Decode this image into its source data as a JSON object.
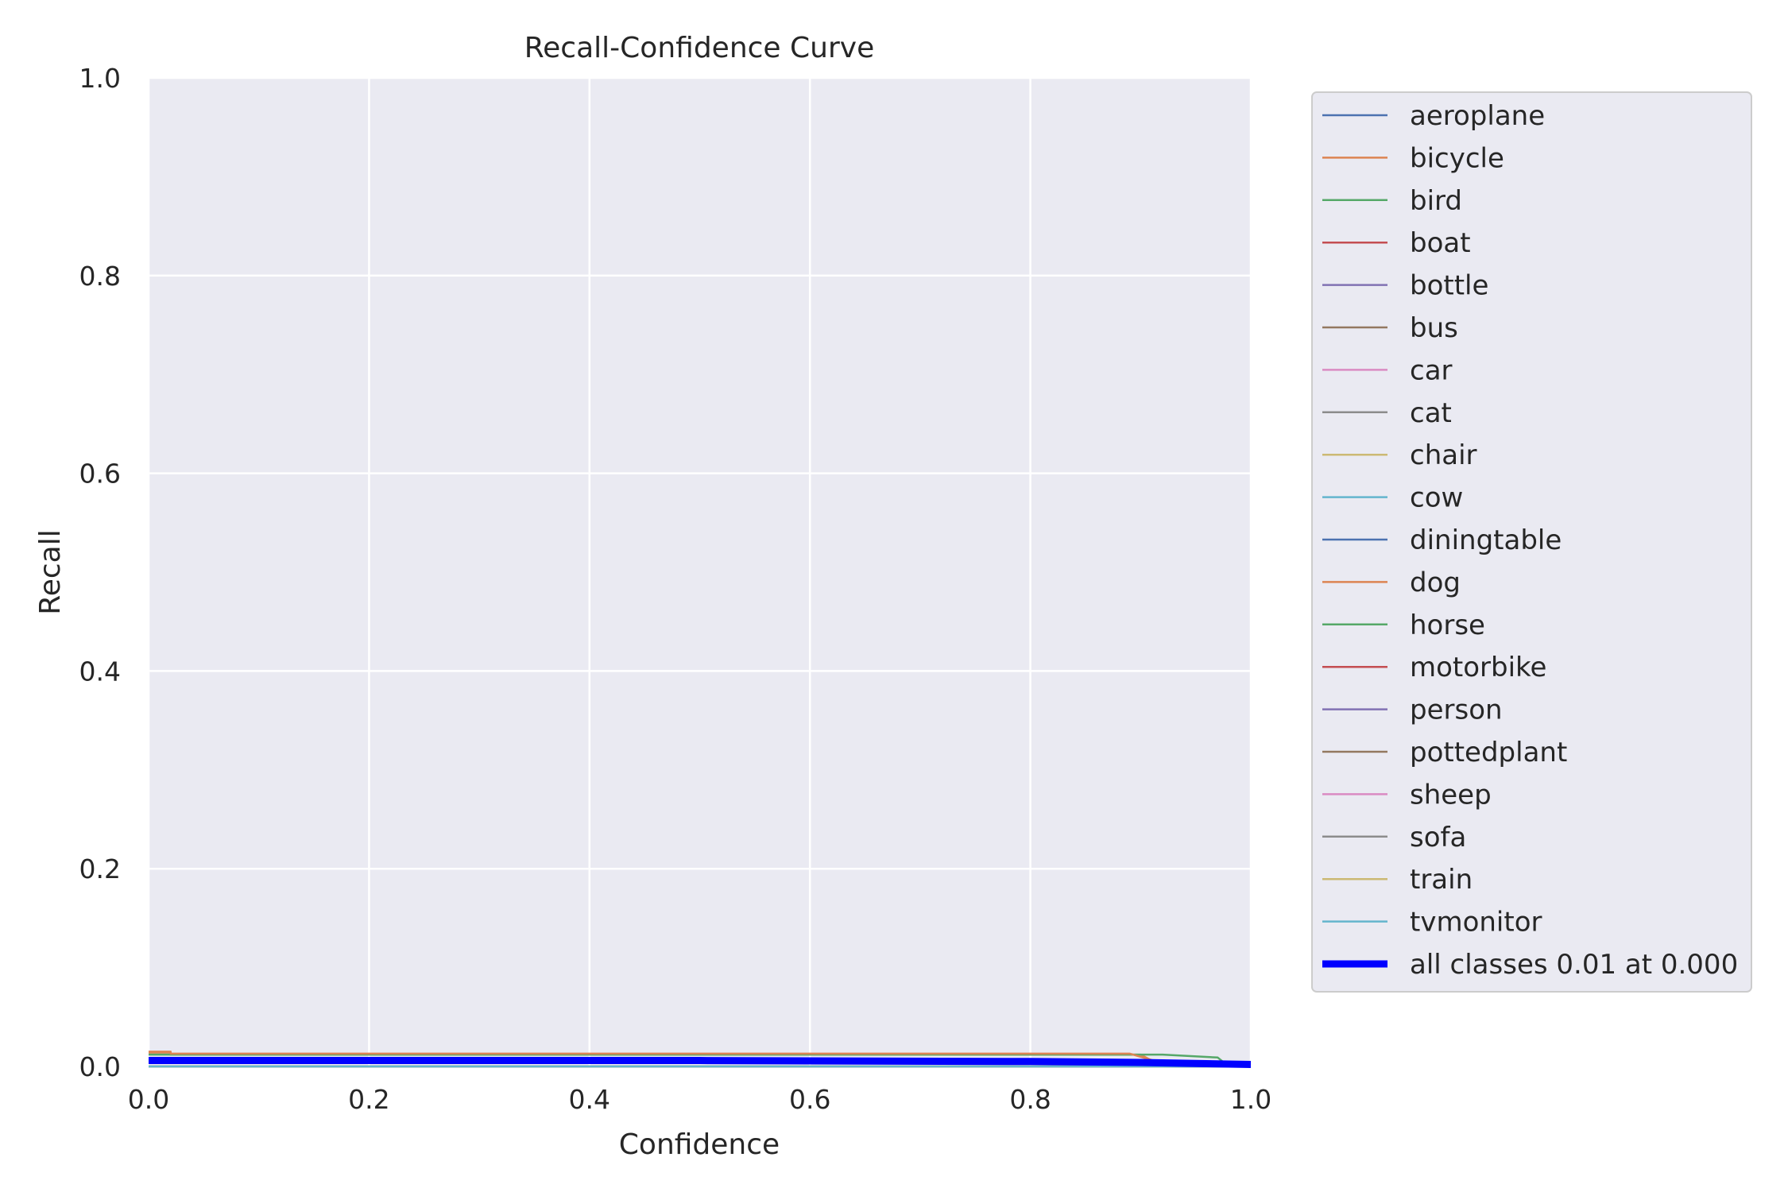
{
  "chart_data": {
    "type": "line",
    "title": "Recall-Confidence Curve",
    "xlabel": "Confidence",
    "ylabel": "Recall",
    "xlim": [
      0,
      1
    ],
    "ylim": [
      0,
      1
    ],
    "grid": true,
    "legend_placement": "outside-right",
    "x_ticks": [
      "0.0",
      "0.2",
      "0.4",
      "0.6",
      "0.8",
      "1.0"
    ],
    "y_ticks": [
      "0.0",
      "0.2",
      "0.4",
      "0.6",
      "0.8",
      "1.0"
    ],
    "series": [
      {
        "name": "aeroplane",
        "color": "#4c72b0",
        "x": [
          0,
          1
        ],
        "y": [
          0,
          0
        ]
      },
      {
        "name": "bicycle",
        "color": "#dd8452",
        "x": [
          0,
          0.02,
          0.02,
          0.9,
          0.92,
          1.0
        ],
        "y": [
          0.014,
          0.014,
          0.012,
          0.012,
          0.0,
          0.0
        ]
      },
      {
        "name": "bird",
        "color": "#55a868",
        "x": [
          0,
          0.9,
          0.92,
          0.97,
          0.98,
          1.0
        ],
        "y": [
          0.012,
          0.012,
          0.012,
          0.009,
          0.0,
          0.0
        ]
      },
      {
        "name": "boat",
        "color": "#c44e52",
        "x": [
          0,
          0.9,
          0.93,
          1.0
        ],
        "y": [
          0.006,
          0.006,
          0.0,
          0.0
        ]
      },
      {
        "name": "bottle",
        "color": "#8172b3",
        "x": [
          0,
          1
        ],
        "y": [
          0,
          0
        ]
      },
      {
        "name": "bus",
        "color": "#937860",
        "x": [
          0,
          1
        ],
        "y": [
          0,
          0
        ]
      },
      {
        "name": "car",
        "color": "#da8bc3",
        "x": [
          0,
          1
        ],
        "y": [
          0,
          0
        ]
      },
      {
        "name": "cat",
        "color": "#8c8c8c",
        "x": [
          0,
          0.88,
          0.9,
          1.0
        ],
        "y": [
          0.006,
          0.006,
          0.0,
          0.0
        ]
      },
      {
        "name": "chair",
        "color": "#ccb974",
        "x": [
          0,
          1
        ],
        "y": [
          0,
          0
        ]
      },
      {
        "name": "cow",
        "color": "#64b5cd",
        "x": [
          0,
          1
        ],
        "y": [
          0,
          0
        ]
      },
      {
        "name": "diningtable",
        "color": "#4c72b0",
        "x": [
          0,
          1
        ],
        "y": [
          0,
          0
        ]
      },
      {
        "name": "dog",
        "color": "#dd8452",
        "x": [
          0,
          0.02,
          0.02,
          0.89,
          0.93,
          1.0
        ],
        "y": [
          0.015,
          0.015,
          0.013,
          0.013,
          0.0,
          0.0
        ]
      },
      {
        "name": "horse",
        "color": "#55a868",
        "x": [
          0,
          1
        ],
        "y": [
          0,
          0
        ]
      },
      {
        "name": "motorbike",
        "color": "#c44e52",
        "x": [
          0,
          0.85,
          0.9,
          1.0
        ],
        "y": [
          0.005,
          0.005,
          0.0,
          0.0
        ]
      },
      {
        "name": "person",
        "color": "#8172b3",
        "x": [
          0,
          0.8,
          0.85,
          1.0
        ],
        "y": [
          0.004,
          0.004,
          0.0,
          0.0
        ]
      },
      {
        "name": "pottedplant",
        "color": "#937860",
        "x": [
          0,
          1
        ],
        "y": [
          0,
          0
        ]
      },
      {
        "name": "sheep",
        "color": "#da8bc3",
        "x": [
          0,
          1
        ],
        "y": [
          0,
          0
        ]
      },
      {
        "name": "sofa",
        "color": "#8c8c8c",
        "x": [
          0,
          1
        ],
        "y": [
          0,
          0
        ]
      },
      {
        "name": "train",
        "color": "#ccb974",
        "x": [
          0,
          1
        ],
        "y": [
          0,
          0
        ]
      },
      {
        "name": "tvmonitor",
        "color": "#64b5cd",
        "x": [
          0,
          1
        ],
        "y": [
          0,
          0
        ]
      },
      {
        "name": "all classes 0.01 at 0.000",
        "color": "#0000ff",
        "thick": true,
        "x": [
          0,
          0.5,
          0.8,
          0.9,
          1.0
        ],
        "y": [
          0.006,
          0.006,
          0.005,
          0.004,
          0.002
        ]
      }
    ]
  }
}
